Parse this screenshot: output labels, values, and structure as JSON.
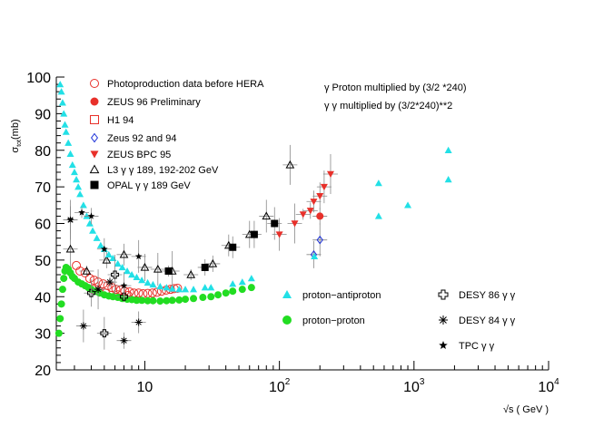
{
  "chart_data": {
    "type": "scatter",
    "xscale": "log",
    "xlim": [
      2.2,
      10000
    ],
    "ylim": [
      20,
      100
    ],
    "xlabel": "√s ( GeV )",
    "ylabel": "σ_tot(mb)",
    "ylabel_main": "σ",
    "ylabel_sub": "tot",
    "ylabel_unit": "(mb)",
    "xticks": [
      {
        "v": 10,
        "base": "10",
        "exp": ""
      },
      {
        "v": 100,
        "base": "10",
        "exp": "2"
      },
      {
        "v": 1000,
        "base": "10",
        "exp": "3"
      },
      {
        "v": 10000,
        "base": "10",
        "exp": "4"
      }
    ],
    "yticks": [
      20,
      30,
      40,
      50,
      60,
      70,
      80,
      90,
      100
    ],
    "annotations": [
      "γ Proton multiplied by (3/2 *240)",
      "γ γ multiplied by (3/2*240)**2"
    ],
    "series": [
      {
        "name": "Photoproduction data before HERA",
        "marker": "circle-open",
        "color": "#e8302a",
        "points": [
          [
            3.1,
            48.5
          ],
          [
            3.3,
            47
          ],
          [
            3.6,
            46.5
          ],
          [
            3.9,
            45
          ],
          [
            4.2,
            44.5
          ],
          [
            4.5,
            44
          ],
          [
            4.9,
            43.5
          ],
          [
            5.3,
            43
          ],
          [
            5.7,
            42.5
          ],
          [
            6.1,
            42
          ],
          [
            6.6,
            41.8
          ],
          [
            7.1,
            41.5
          ],
          [
            7.7,
            41.3
          ],
          [
            8.3,
            41
          ],
          [
            9,
            41
          ],
          [
            9.7,
            40.8
          ],
          [
            10.5,
            40.9
          ],
          [
            11.4,
            41
          ],
          [
            12.3,
            41.2
          ],
          [
            13.3,
            41.5
          ],
          [
            14.4,
            41.8
          ],
          [
            15.5,
            42
          ],
          [
            16.5,
            42.2
          ],
          [
            17.5,
            42.3
          ],
          [
            4.1,
            42
          ],
          [
            4.6,
            41.5
          ],
          [
            5.1,
            41
          ],
          [
            6.3,
            40.5
          ],
          [
            7.5,
            40.3
          ]
        ]
      },
      {
        "name": "ZEUS 96 Preliminary",
        "marker": "circle",
        "color": "#e8302a",
        "points": [
          [
            200,
            62
          ]
        ]
      },
      {
        "name": "H1 94",
        "marker": "square-open",
        "color": "#e8302a",
        "points": []
      },
      {
        "name": "Zeus 92 and 94",
        "marker": "diamond-open",
        "color": "#1a2fd8",
        "points": [
          [
            180,
            51.5
          ],
          [
            200,
            55.5
          ]
        ]
      },
      {
        "name": "ZEUS BPC 95",
        "marker": "triangle-down",
        "color": "#e8302a",
        "points": [
          [
            100,
            57
          ],
          [
            130,
            60
          ],
          [
            150,
            62.5
          ],
          [
            170,
            63.5
          ],
          [
            180,
            66
          ],
          [
            200,
            67.5
          ],
          [
            215,
            70
          ],
          [
            240,
            73.5
          ]
        ]
      },
      {
        "name": "L3 γ γ  189, 192-202 GeV",
        "marker": "triangle-open",
        "color": "#000000",
        "points": [
          [
            2.8,
            53
          ],
          [
            3.7,
            47
          ],
          [
            5.2,
            50
          ],
          [
            7.0,
            51.5
          ],
          [
            10.0,
            48
          ],
          [
            12.5,
            47.5
          ],
          [
            16.0,
            47
          ],
          [
            22.0,
            46
          ],
          [
            32.0,
            49
          ],
          [
            42.0,
            54
          ],
          [
            60.0,
            57
          ],
          [
            80.0,
            62
          ],
          [
            120.0,
            76
          ]
        ]
      },
      {
        "name": "OPAL γ γ  189 GeV",
        "marker": "square",
        "color": "#000000",
        "points": [
          [
            15,
            47
          ],
          [
            28,
            48
          ],
          [
            45,
            53.5
          ],
          [
            65,
            57
          ],
          [
            92,
            60
          ]
        ]
      },
      {
        "name": "proton−antiproton",
        "marker": "triangle",
        "color": "#22e0e6",
        "points": [
          [
            2.35,
            98
          ],
          [
            2.4,
            96
          ],
          [
            2.45,
            93
          ],
          [
            2.5,
            90
          ],
          [
            2.55,
            87
          ],
          [
            2.6,
            85
          ],
          [
            2.7,
            82
          ],
          [
            2.8,
            79
          ],
          [
            2.9,
            76
          ],
          [
            3.0,
            74
          ],
          [
            3.1,
            72
          ],
          [
            3.2,
            70
          ],
          [
            3.3,
            68
          ],
          [
            3.5,
            65
          ],
          [
            3.7,
            62
          ],
          [
            3.9,
            60
          ],
          [
            4.1,
            58
          ],
          [
            4.4,
            56
          ],
          [
            4.7,
            54
          ],
          [
            5.0,
            53
          ],
          [
            5.4,
            51.5
          ],
          [
            5.8,
            50.5
          ],
          [
            6.3,
            49
          ],
          [
            6.8,
            48
          ],
          [
            7.4,
            47
          ],
          [
            8.0,
            46
          ],
          [
            8.7,
            45.3
          ],
          [
            9.5,
            44.5
          ],
          [
            10.5,
            43.8
          ],
          [
            11.5,
            43.3
          ],
          [
            13,
            42.8
          ],
          [
            14.5,
            42.5
          ],
          [
            16,
            42.2
          ],
          [
            18,
            42
          ],
          [
            20,
            42
          ],
          [
            23,
            42
          ],
          [
            28,
            42.5
          ],
          [
            31,
            42.5
          ],
          [
            45,
            43.5
          ],
          [
            53,
            44
          ],
          [
            62,
            45
          ],
          [
            182,
            51
          ],
          [
            546,
            62
          ],
          [
            546,
            71
          ],
          [
            900,
            65
          ],
          [
            1800,
            72
          ],
          [
            1800,
            80
          ]
        ]
      },
      {
        "name": "proton−proton",
        "marker": "circle",
        "color": "#22dd22",
        "points": [
          [
            2.3,
            30
          ],
          [
            2.35,
            34
          ],
          [
            2.4,
            38
          ],
          [
            2.45,
            42
          ],
          [
            2.5,
            45
          ],
          [
            2.55,
            47
          ],
          [
            2.6,
            48
          ],
          [
            2.7,
            47.5
          ],
          [
            2.8,
            46.5
          ],
          [
            2.9,
            45.5
          ],
          [
            3.0,
            45
          ],
          [
            3.2,
            44
          ],
          [
            3.4,
            43.5
          ],
          [
            3.6,
            43
          ],
          [
            3.8,
            42.5
          ],
          [
            4.0,
            42
          ],
          [
            4.3,
            41.5
          ],
          [
            4.6,
            41
          ],
          [
            5.0,
            40.5
          ],
          [
            5.4,
            40.2
          ],
          [
            5.8,
            40
          ],
          [
            6.3,
            39.8
          ],
          [
            6.8,
            39.5
          ],
          [
            7.4,
            39.3
          ],
          [
            8.0,
            39.2
          ],
          [
            8.7,
            39
          ],
          [
            9.5,
            39
          ],
          [
            10.5,
            38.9
          ],
          [
            11.5,
            38.9
          ],
          [
            13,
            38.8
          ],
          [
            14.5,
            38.9
          ],
          [
            16,
            39
          ],
          [
            18,
            39.1
          ],
          [
            20,
            39.3
          ],
          [
            23,
            39.5
          ],
          [
            27,
            39.8
          ],
          [
            31,
            40
          ],
          [
            35,
            40.5
          ],
          [
            40,
            41
          ],
          [
            45,
            41.5
          ],
          [
            53,
            42
          ],
          [
            62,
            42.5
          ]
        ]
      },
      {
        "name": "DESY 86 γ γ",
        "marker": "cross-open",
        "color": "#000000",
        "points": [
          [
            4.0,
            41
          ],
          [
            5.0,
            30
          ],
          [
            6.0,
            46
          ],
          [
            7.0,
            40
          ]
        ]
      },
      {
        "name": "DESY 84 γ γ",
        "marker": "asterisk",
        "color": "#000000",
        "points": [
          [
            3.5,
            32
          ],
          [
            4.5,
            42
          ],
          [
            5.5,
            44
          ],
          [
            7.0,
            28
          ],
          [
            9.0,
            33
          ],
          [
            2.8,
            61
          ]
        ]
      },
      {
        "name": "TPC γ γ",
        "marker": "star",
        "color": "#000000",
        "points": [
          [
            2.8,
            61
          ],
          [
            3.4,
            63
          ],
          [
            4.0,
            62
          ],
          [
            5.0,
            53
          ],
          [
            7.0,
            43
          ],
          [
            9.0,
            51
          ]
        ]
      }
    ]
  }
}
